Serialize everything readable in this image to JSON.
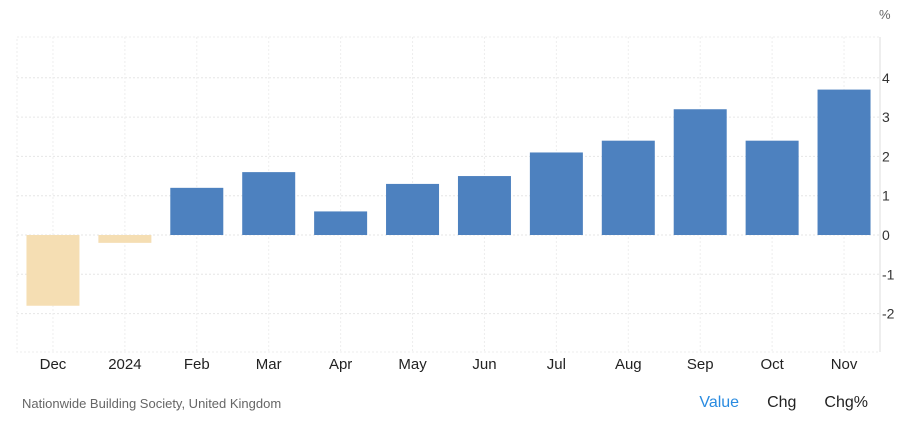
{
  "chart_data": {
    "type": "bar",
    "categories": [
      "Dec",
      "2024",
      "Feb",
      "Mar",
      "Apr",
      "May",
      "Jun",
      "Jul",
      "Aug",
      "Sep",
      "Oct",
      "Nov"
    ],
    "values": [
      -1.8,
      -0.2,
      1.2,
      1.6,
      0.6,
      1.3,
      1.5,
      2.1,
      2.4,
      3.2,
      2.4,
      3.7
    ],
    "unit": "%",
    "yticks": [
      4,
      3,
      2,
      1,
      0,
      -1,
      -2
    ],
    "ylim": [
      -3,
      5
    ],
    "grid": true,
    "colors": {
      "positive": "#4d81bf",
      "negative": "#f5deb3"
    }
  },
  "footer": {
    "source": "Nationwide Building Society, United Kingdom",
    "tabs": [
      {
        "label": "Value",
        "active": true
      },
      {
        "label": "Chg",
        "active": false
      },
      {
        "label": "Chg%",
        "active": false
      }
    ]
  }
}
